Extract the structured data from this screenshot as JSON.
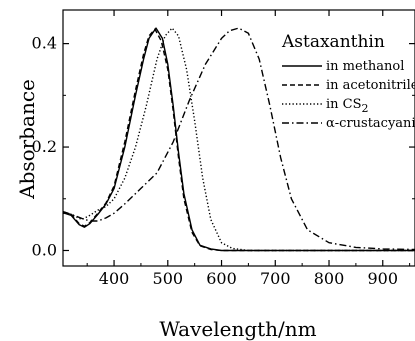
{
  "chart_data": {
    "type": "line",
    "xlabel": "Wavelength/nm",
    "ylabel": "Absorbance",
    "xlim": [
      305,
      960
    ],
    "ylim": [
      -0.03,
      0.465
    ],
    "xticks": [
      "400",
      "500",
      "600",
      "700",
      "800",
      "900"
    ],
    "xtick_values": [
      400,
      500,
      600,
      700,
      800,
      900
    ],
    "yticks": [
      "0.0",
      "0.2",
      "0.4"
    ],
    "ytick_values": [
      0.0,
      0.2,
      0.4
    ],
    "grid": false,
    "legend_title": "Astaxanthin",
    "legend_position": "top-right",
    "series": [
      {
        "name": "in methanol",
        "dash": "solid",
        "x": [
          305,
          320,
          335,
          345,
          355,
          370,
          385,
          400,
          420,
          440,
          455,
          465,
          478,
          490,
          500,
          510,
          520,
          530,
          545,
          560,
          580,
          600,
          650,
          700,
          800,
          960
        ],
        "y": [
          0.073,
          0.068,
          0.05,
          0.045,
          0.052,
          0.07,
          0.09,
          0.12,
          0.2,
          0.3,
          0.37,
          0.41,
          0.43,
          0.41,
          0.36,
          0.28,
          0.19,
          0.11,
          0.04,
          0.01,
          0.003,
          0.0,
          0.0,
          0.0,
          0.0,
          0.0
        ]
      },
      {
        "name": "in acetonitrile",
        "dash": "dashed",
        "x": [
          305,
          320,
          335,
          345,
          355,
          370,
          385,
          400,
          420,
          440,
          455,
          465,
          476,
          488,
          500,
          510,
          520,
          530,
          545,
          560,
          580,
          600,
          650,
          700,
          800,
          960
        ],
        "y": [
          0.075,
          0.07,
          0.052,
          0.047,
          0.054,
          0.072,
          0.092,
          0.125,
          0.21,
          0.31,
          0.38,
          0.415,
          0.428,
          0.405,
          0.35,
          0.27,
          0.18,
          0.1,
          0.035,
          0.009,
          0.002,
          0.0,
          0.0,
          0.0,
          0.0,
          0.0
        ]
      },
      {
        "name": "in CS",
        "name_subscript": "2",
        "dash": "dotted",
        "x": [
          305,
          320,
          340,
          355,
          370,
          385,
          400,
          420,
          440,
          460,
          480,
          495,
          508,
          520,
          535,
          550,
          565,
          580,
          600,
          620,
          650,
          700,
          800,
          960
        ],
        "y": [
          0.072,
          0.07,
          0.06,
          0.068,
          0.078,
          0.085,
          0.1,
          0.14,
          0.2,
          0.28,
          0.37,
          0.415,
          0.43,
          0.415,
          0.35,
          0.25,
          0.14,
          0.06,
          0.015,
          0.004,
          0.0,
          0.0,
          0.0,
          0.0
        ]
      },
      {
        "name": "α-crustacyanin",
        "dash": "dashdot",
        "x": [
          305,
          320,
          340,
          355,
          370,
          385,
          400,
          420,
          450,
          480,
          510,
          540,
          570,
          600,
          615,
          632,
          650,
          670,
          690,
          710,
          730,
          760,
          800,
          850,
          900,
          960
        ],
        "y": [
          0.075,
          0.07,
          0.062,
          0.057,
          0.057,
          0.063,
          0.072,
          0.09,
          0.12,
          0.15,
          0.21,
          0.29,
          0.36,
          0.41,
          0.425,
          0.43,
          0.42,
          0.37,
          0.28,
          0.18,
          0.1,
          0.04,
          0.015,
          0.006,
          0.003,
          0.002
        ]
      }
    ]
  }
}
